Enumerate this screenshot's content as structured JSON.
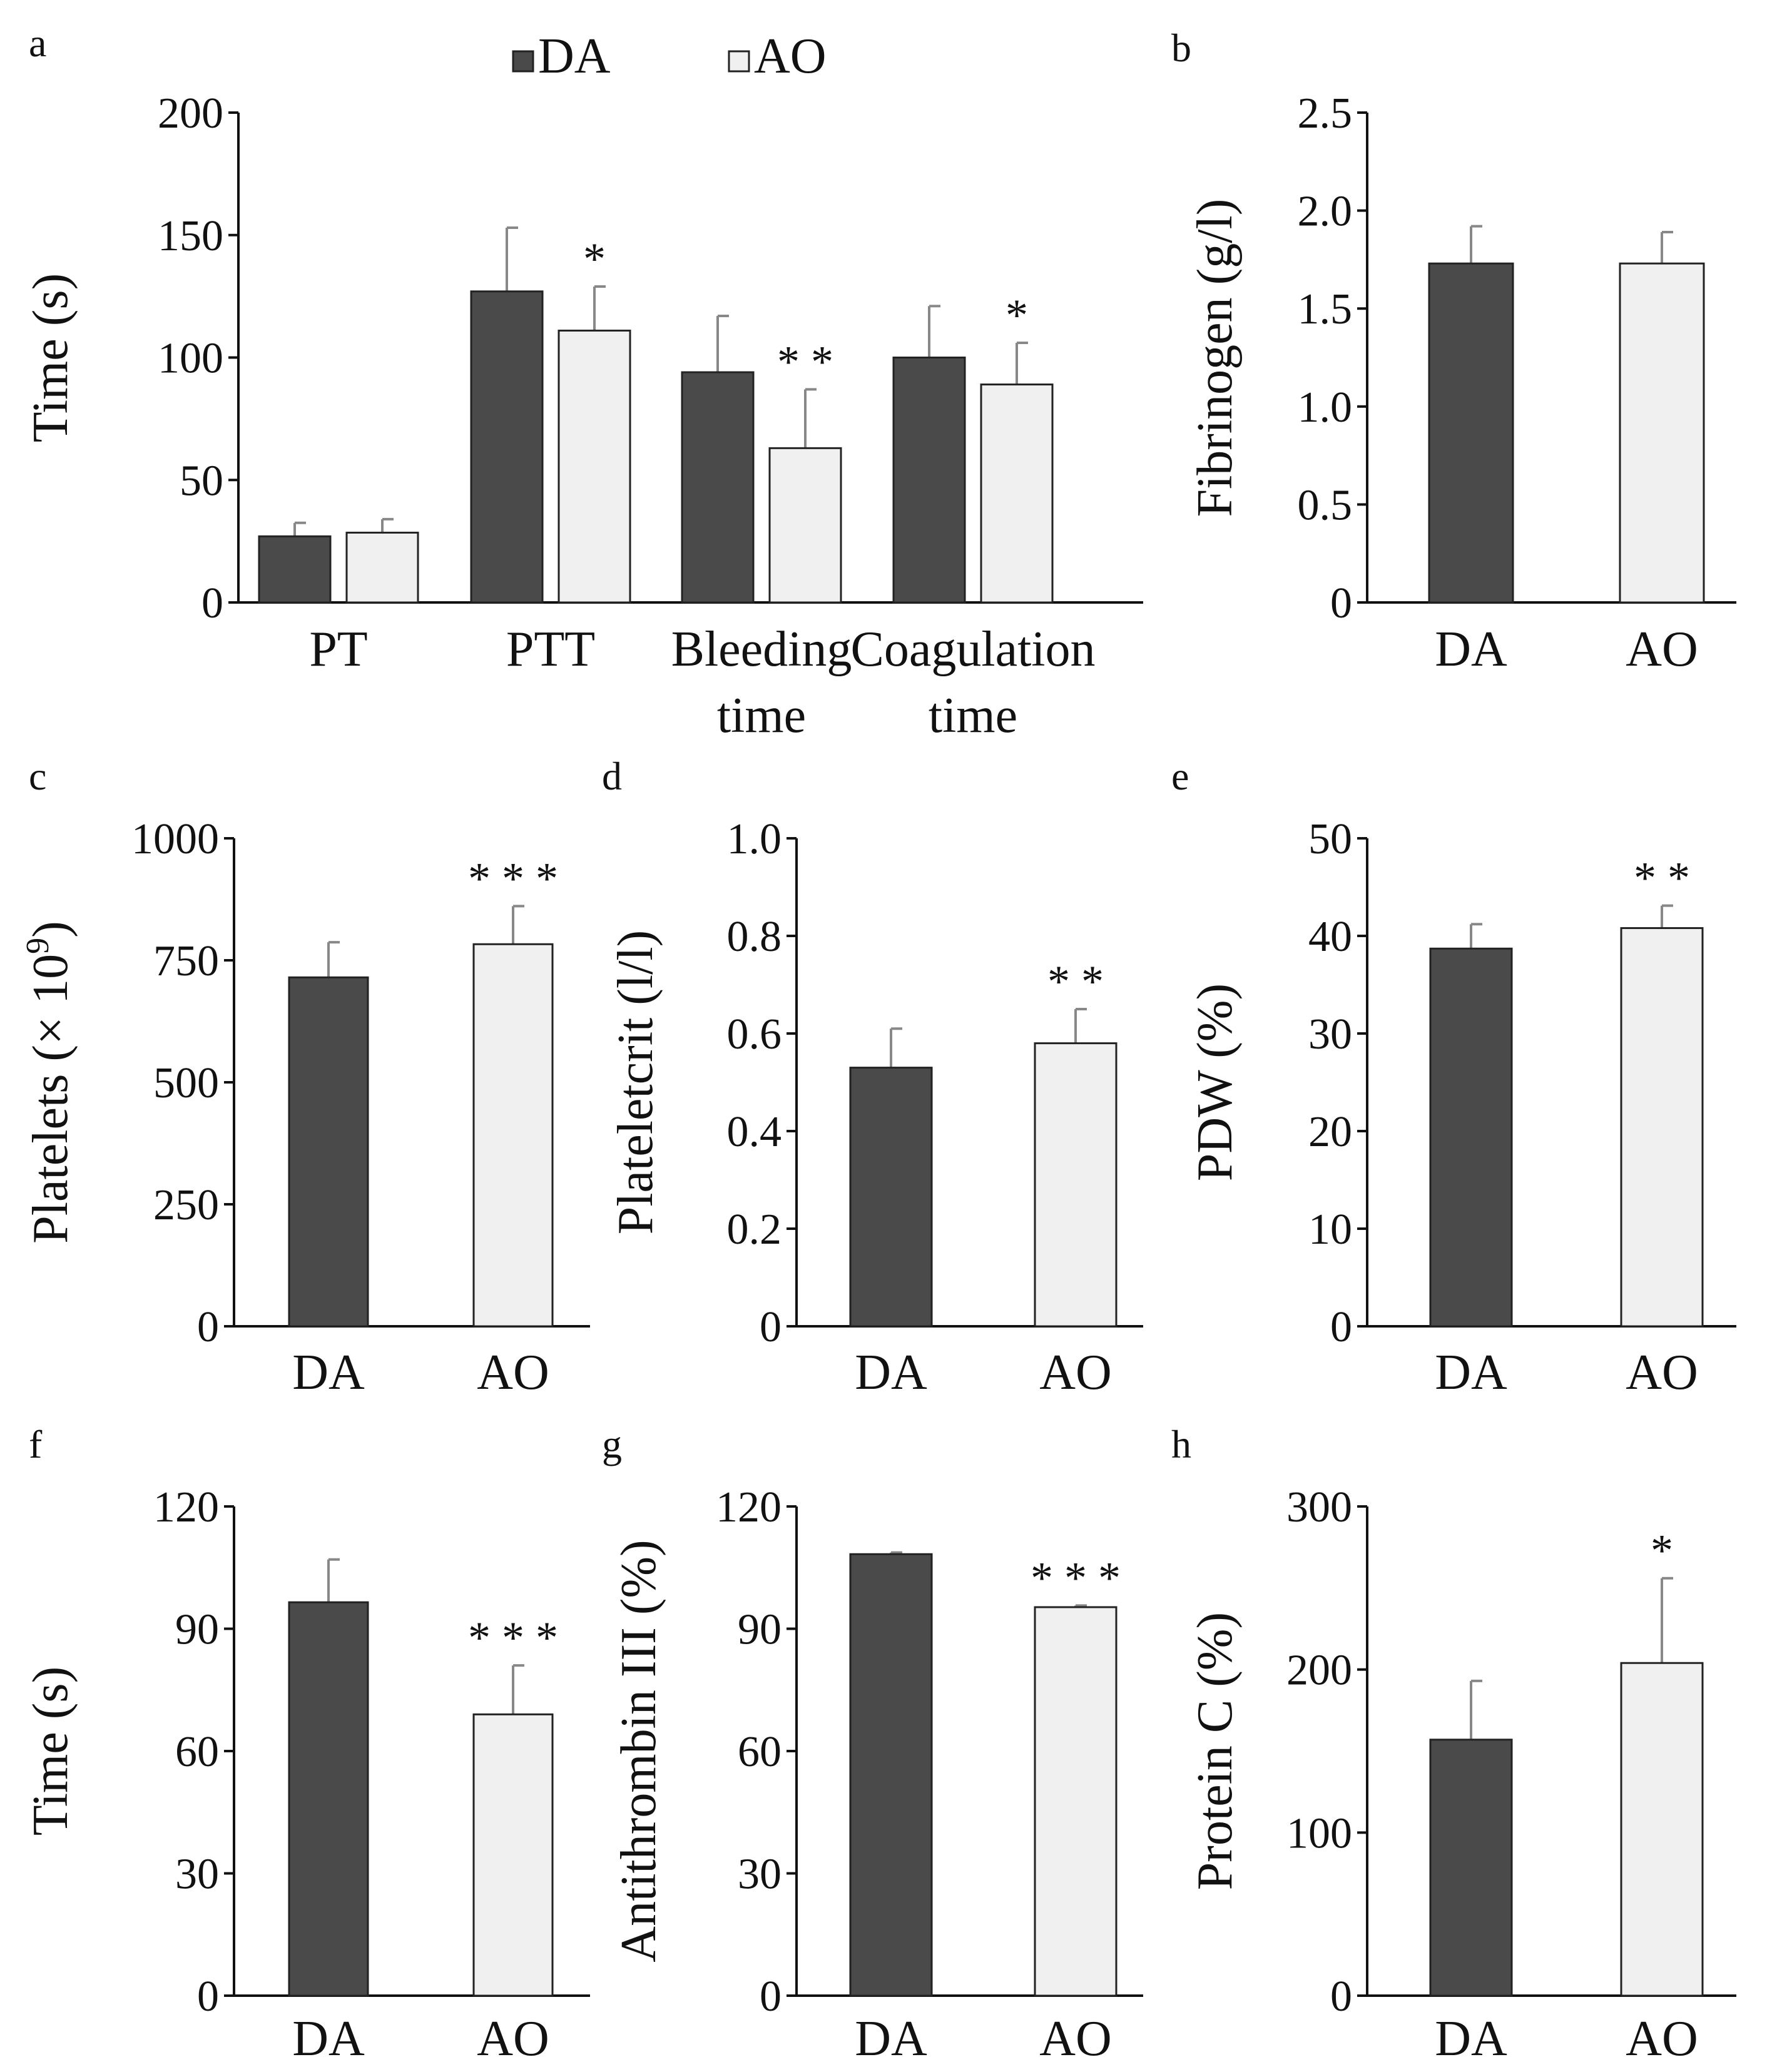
{
  "legend": {
    "items": [
      {
        "label": "DA",
        "color": "#4a4a4a"
      },
      {
        "label": "AO",
        "color": "#f0f0f0"
      }
    ]
  },
  "colors": {
    "DA": "#4a4a4a",
    "AO": "#f0f0f0",
    "error_bar": "#888888",
    "axis": "#111111"
  },
  "chart_data": [
    {
      "panel": "a",
      "type": "bar",
      "ylabel": "Time (s)",
      "ylim": [
        0,
        200
      ],
      "yticks": [
        0,
        50,
        100,
        150,
        200
      ],
      "ytick_labels": [
        "0",
        "50",
        "100",
        "150",
        "200"
      ],
      "categories": [
        [
          "PT"
        ],
        [
          "PTT"
        ],
        [
          "Bleeding",
          "time"
        ],
        [
          "Coagulation",
          "time"
        ]
      ],
      "series": [
        {
          "name": "DA",
          "values": [
            27,
            127,
            94,
            100
          ],
          "errors": [
            5.5,
            26,
            23,
            21
          ],
          "sig": [
            "",
            "",
            "",
            ""
          ]
        },
        {
          "name": "AO",
          "values": [
            28.5,
            111,
            63,
            89
          ],
          "errors": [
            5.5,
            18,
            24,
            17
          ],
          "sig": [
            "",
            "*",
            "**",
            "*"
          ]
        }
      ]
    },
    {
      "panel": "b",
      "type": "bar",
      "ylabel": "Fibrinogen (g/l)",
      "ylim": [
        0,
        2.5
      ],
      "yticks": [
        0,
        0.5,
        1.0,
        1.5,
        2.0,
        2.5
      ],
      "ytick_labels": [
        "0",
        "0.5",
        "1.0",
        "1.5",
        "2.0",
        "2.5"
      ],
      "categories": [
        "DA",
        "AO"
      ],
      "values": [
        1.73,
        1.73
      ],
      "errors": [
        0.19,
        0.16
      ],
      "sig": [
        "",
        ""
      ]
    },
    {
      "panel": "c",
      "type": "bar",
      "ylabel": "Platelets (× 10",
      "ylabel_sup": "9",
      "ylabel_end": ")",
      "ylim": [
        0,
        1000
      ],
      "yticks": [
        0,
        250,
        500,
        750,
        1000
      ],
      "ytick_labels": [
        "0",
        "250",
        "500",
        "750",
        "1000"
      ],
      "categories": [
        "DA",
        "AO"
      ],
      "values": [
        715,
        783
      ],
      "errors": [
        72,
        78
      ],
      "sig": [
        "",
        "***"
      ]
    },
    {
      "panel": "d",
      "type": "bar",
      "ylabel": "Plateletcrit (l/l)",
      "ylim": [
        0,
        1.0
      ],
      "yticks": [
        0,
        0.2,
        0.4,
        0.6,
        0.8,
        1.0
      ],
      "ytick_labels": [
        "0",
        "0.2",
        "0.4",
        "0.6",
        "0.8",
        "1.0"
      ],
      "categories": [
        "DA",
        "AO"
      ],
      "values": [
        0.53,
        0.58
      ],
      "errors": [
        0.08,
        0.07
      ],
      "sig": [
        "",
        "**"
      ]
    },
    {
      "panel": "e",
      "type": "bar",
      "ylabel": "PDW (%)",
      "ylim": [
        0,
        50
      ],
      "yticks": [
        0,
        10,
        20,
        30,
        40,
        50
      ],
      "ytick_labels": [
        "0",
        "10",
        "20",
        "30",
        "40",
        "50"
      ],
      "categories": [
        "DA",
        "AO"
      ],
      "values": [
        38.7,
        40.8
      ],
      "errors": [
        2.5,
        2.3
      ],
      "sig": [
        "",
        "**"
      ]
    },
    {
      "panel": "f",
      "type": "bar",
      "ylabel": "Time (s)",
      "ylim": [
        0,
        120
      ],
      "yticks": [
        0,
        30,
        60,
        90,
        120
      ],
      "ytick_labels": [
        "0",
        "30",
        "60",
        "90",
        "120"
      ],
      "categories": [
        "DA",
        "AO"
      ],
      "values": [
        96.5,
        69
      ],
      "errors": [
        10.5,
        12
      ],
      "sig": [
        "",
        "***"
      ]
    },
    {
      "panel": "g",
      "type": "bar",
      "ylabel": "Antithrombin III (%)",
      "ylim": [
        0,
        120
      ],
      "yticks": [
        0,
        30,
        60,
        90,
        120
      ],
      "ytick_labels": [
        "0",
        "30",
        "60",
        "90",
        "120"
      ],
      "categories": [
        "DA",
        "AO"
      ],
      "values": [
        108.3,
        95.3
      ],
      "errors": [
        0.4,
        0.4
      ],
      "sig": [
        "",
        "***"
      ]
    },
    {
      "panel": "h",
      "type": "bar",
      "ylabel": "Protein C (%)",
      "ylim": [
        0,
        300
      ],
      "yticks": [
        0,
        100,
        200,
        300
      ],
      "ytick_labels": [
        "0",
        "100",
        "200",
        "300"
      ],
      "categories": [
        "DA",
        "AO"
      ],
      "values": [
        157,
        204
      ],
      "errors": [
        36,
        52
      ],
      "sig": [
        "",
        "*"
      ]
    }
  ]
}
